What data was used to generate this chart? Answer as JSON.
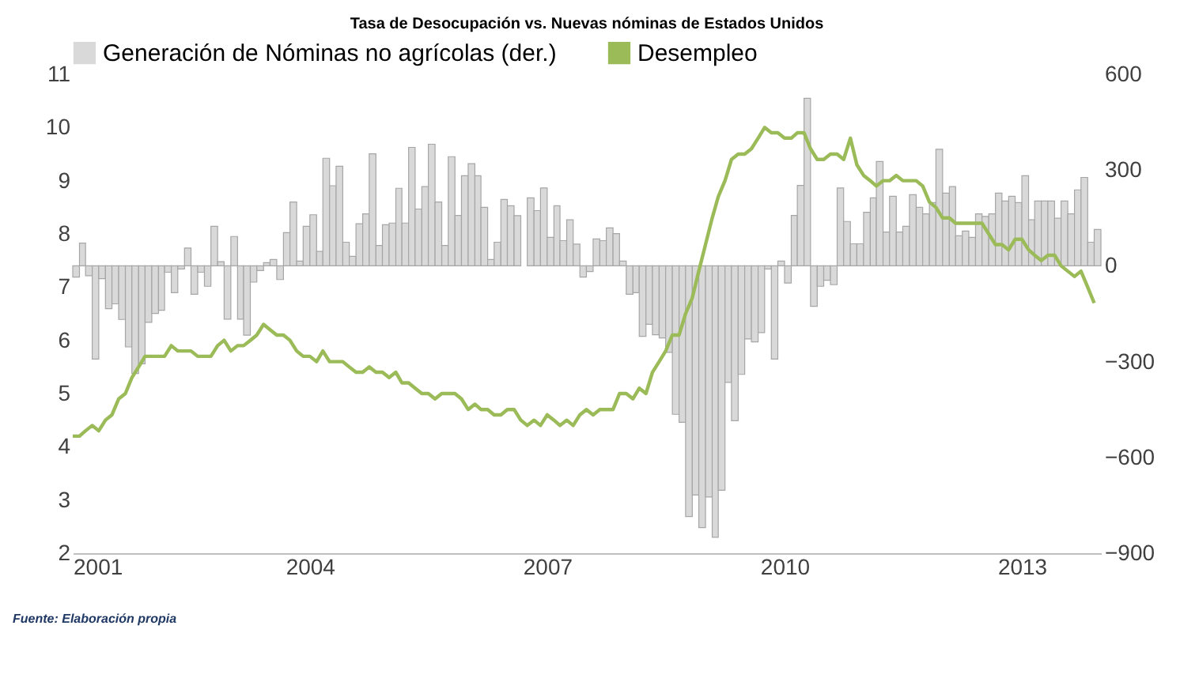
{
  "chart_data": {
    "type": "bar",
    "title": "Tasa de Desocupación vs. Nuevas nóminas de Estados Unidos",
    "annotations": [
      "Fuente: Elaboración propia"
    ],
    "x": [
      "2001-01",
      "2001-02",
      "2001-03",
      "2001-04",
      "2001-05",
      "2001-06",
      "2001-07",
      "2001-08",
      "2001-09",
      "2001-10",
      "2001-11",
      "2001-12",
      "2002-01",
      "2002-02",
      "2002-03",
      "2002-04",
      "2002-05",
      "2002-06",
      "2002-07",
      "2002-08",
      "2002-09",
      "2002-10",
      "2002-11",
      "2002-12",
      "2003-01",
      "2003-02",
      "2003-03",
      "2003-04",
      "2003-05",
      "2003-06",
      "2003-07",
      "2003-08",
      "2003-09",
      "2003-10",
      "2003-11",
      "2003-12",
      "2004-01",
      "2004-02",
      "2004-03",
      "2004-04",
      "2004-05",
      "2004-06",
      "2004-07",
      "2004-08",
      "2004-09",
      "2004-10",
      "2004-11",
      "2004-12",
      "2005-01",
      "2005-02",
      "2005-03",
      "2005-04",
      "2005-05",
      "2005-06",
      "2005-07",
      "2005-08",
      "2005-09",
      "2005-10",
      "2005-11",
      "2005-12",
      "2006-01",
      "2006-02",
      "2006-03",
      "2006-04",
      "2006-05",
      "2006-06",
      "2006-07",
      "2006-08",
      "2006-09",
      "2006-10",
      "2006-11",
      "2006-12",
      "2007-01",
      "2007-02",
      "2007-03",
      "2007-04",
      "2007-05",
      "2007-06",
      "2007-07",
      "2007-08",
      "2007-09",
      "2007-10",
      "2007-11",
      "2007-12",
      "2008-01",
      "2008-02",
      "2008-03",
      "2008-04",
      "2008-05",
      "2008-06",
      "2008-07",
      "2008-08",
      "2008-09",
      "2008-10",
      "2008-11",
      "2008-12",
      "2009-01",
      "2009-02",
      "2009-03",
      "2009-04",
      "2009-05",
      "2009-06",
      "2009-07",
      "2009-08",
      "2009-09",
      "2009-10",
      "2009-11",
      "2009-12",
      "2010-01",
      "2010-02",
      "2010-03",
      "2010-04",
      "2010-05",
      "2010-06",
      "2010-07",
      "2010-08",
      "2010-09",
      "2010-10",
      "2010-11",
      "2010-12",
      "2011-01",
      "2011-02",
      "2011-03",
      "2011-04",
      "2011-05",
      "2011-06",
      "2011-07",
      "2011-08",
      "2011-09",
      "2011-10",
      "2011-11",
      "2011-12",
      "2012-01",
      "2012-02",
      "2012-03",
      "2012-04",
      "2012-05",
      "2012-06",
      "2012-07",
      "2012-08",
      "2012-09",
      "2012-10",
      "2012-11",
      "2012-12",
      "2013-01",
      "2013-02",
      "2013-03",
      "2013-04",
      "2013-05",
      "2013-06",
      "2013-07",
      "2013-08",
      "2013-09",
      "2013-10",
      "2013-11",
      "2013-12"
    ],
    "series": [
      {
        "name": "Generación de Nóminas no agrícolas (der.)",
        "axis": "y2",
        "color": "#d9d9d9",
        "values": [
          -35,
          71,
          -31,
          -292,
          -40,
          -134,
          -119,
          -168,
          -254,
          -337,
          -307,
          -177,
          -149,
          -139,
          -20,
          -84,
          -10,
          56,
          -89,
          -20,
          -64,
          124,
          13,
          -167,
          92,
          -167,
          -217,
          -51,
          -15,
          10,
          20,
          -43,
          104,
          200,
          15,
          124,
          160,
          45,
          337,
          251,
          312,
          74,
          30,
          132,
          163,
          351,
          64,
          129,
          134,
          243,
          134,
          371,
          178,
          248,
          381,
          200,
          64,
          342,
          158,
          282,
          320,
          282,
          183,
          20,
          74,
          208,
          188,
          157,
          0,
          213,
          173,
          244,
          89,
          188,
          79,
          144,
          68,
          -35,
          -18,
          84,
          79,
          119,
          101,
          15,
          -89,
          -84,
          -221,
          -183,
          -216,
          -226,
          -271,
          -465,
          -490,
          -785,
          -718,
          -820,
          -724,
          -850,
          -703,
          -365,
          -485,
          -340,
          -229,
          -238,
          -209,
          -10,
          -292,
          15,
          -54,
          158,
          252,
          525,
          -127,
          -64,
          -45,
          -59,
          244,
          139,
          69,
          69,
          168,
          213,
          327,
          106,
          218,
          106,
          124,
          223,
          183,
          163,
          198,
          365,
          228,
          248,
          94,
          109,
          89,
          163,
          155,
          163,
          228,
          203,
          218,
          198,
          282,
          144,
          203,
          203,
          203,
          149,
          203,
          163,
          238,
          277,
          74,
          114
        ]
      },
      {
        "name": "Desempleo",
        "type": "line",
        "color": "#9bbb59",
        "values": [
          4.2,
          4.2,
          4.3,
          4.4,
          4.3,
          4.5,
          4.6,
          4.9,
          5.0,
          5.3,
          5.5,
          5.7,
          5.7,
          5.7,
          5.7,
          5.9,
          5.8,
          5.8,
          5.8,
          5.7,
          5.7,
          5.7,
          5.9,
          6.0,
          5.8,
          5.9,
          5.9,
          6.0,
          6.1,
          6.3,
          6.2,
          6.1,
          6.1,
          6.0,
          5.8,
          5.7,
          5.7,
          5.6,
          5.8,
          5.6,
          5.6,
          5.6,
          5.5,
          5.4,
          5.4,
          5.5,
          5.4,
          5.4,
          5.3,
          5.4,
          5.2,
          5.2,
          5.1,
          5.0,
          5.0,
          4.9,
          5.0,
          5.0,
          5.0,
          4.9,
          4.7,
          4.8,
          4.7,
          4.7,
          4.6,
          4.6,
          4.7,
          4.7,
          4.5,
          4.4,
          4.5,
          4.4,
          4.6,
          4.5,
          4.4,
          4.5,
          4.4,
          4.6,
          4.7,
          4.6,
          4.7,
          4.7,
          4.7,
          5.0,
          5.0,
          4.9,
          5.1,
          5.0,
          5.4,
          5.6,
          5.8,
          6.1,
          6.1,
          6.5,
          6.8,
          7.3,
          7.8,
          8.3,
          8.7,
          9.0,
          9.4,
          9.5,
          9.5,
          9.6,
          9.8,
          10.0,
          9.9,
          9.9,
          9.8,
          9.8,
          9.9,
          9.9,
          9.6,
          9.4,
          9.4,
          9.5,
          9.5,
          9.4,
          9.8,
          9.3,
          9.1,
          9.0,
          8.9,
          9.0,
          9.0,
          9.1,
          9.0,
          9.0,
          9.0,
          8.9,
          8.6,
          8.5,
          8.3,
          8.3,
          8.2,
          8.2,
          8.2,
          8.2,
          8.2,
          8.0,
          7.8,
          7.8,
          7.7,
          7.9,
          7.9,
          7.7,
          7.6,
          7.5,
          7.6,
          7.6,
          7.4,
          7.3,
          7.2,
          7.3,
          7.0,
          6.7
        ]
      }
    ],
    "xlim": [
      "2001-01",
      "2014-01"
    ],
    "xticks": [
      "2001",
      "2004",
      "2007",
      "2010",
      "2013"
    ],
    "ylim": [
      2,
      11
    ],
    "yticks": [
      2,
      3,
      4,
      5,
      6,
      7,
      8,
      9,
      10,
      11
    ],
    "y2lim": [
      -900,
      600
    ],
    "y2ticks": [
      -900,
      -600,
      -300,
      0,
      300,
      600
    ],
    "grid": false,
    "legend": "top"
  }
}
